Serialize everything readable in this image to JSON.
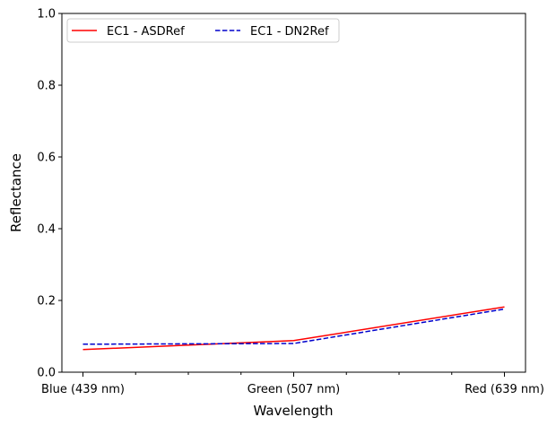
{
  "chart_data": {
    "type": "line",
    "categories": [
      "Blue (439 nm)",
      "Green (507 nm)",
      "Red (639 nm)"
    ],
    "x": [
      0,
      1,
      2
    ],
    "series": [
      {
        "name": "EC1 - ASDRef",
        "values": [
          0.063,
          0.088,
          0.182
        ],
        "color": "#ff0000",
        "style": "solid"
      },
      {
        "name": "EC1 - DN2Ref",
        "values": [
          0.078,
          0.08,
          0.176
        ],
        "color": "#0000cc",
        "style": "dashed"
      }
    ],
    "title": "",
    "xlabel": "Wavelength",
    "ylabel": "Reflectance",
    "ylim": [
      0,
      1.0
    ],
    "yticks": [
      "0.0",
      "0.2",
      "0.4",
      "0.6",
      "0.8",
      "1.0"
    ],
    "xlim": [
      -0.1,
      2.1
    ],
    "minor_xticks": [
      0.25,
      0.5,
      0.75,
      1.25,
      1.5,
      1.75
    ],
    "grid": false,
    "legend": "top-left"
  }
}
